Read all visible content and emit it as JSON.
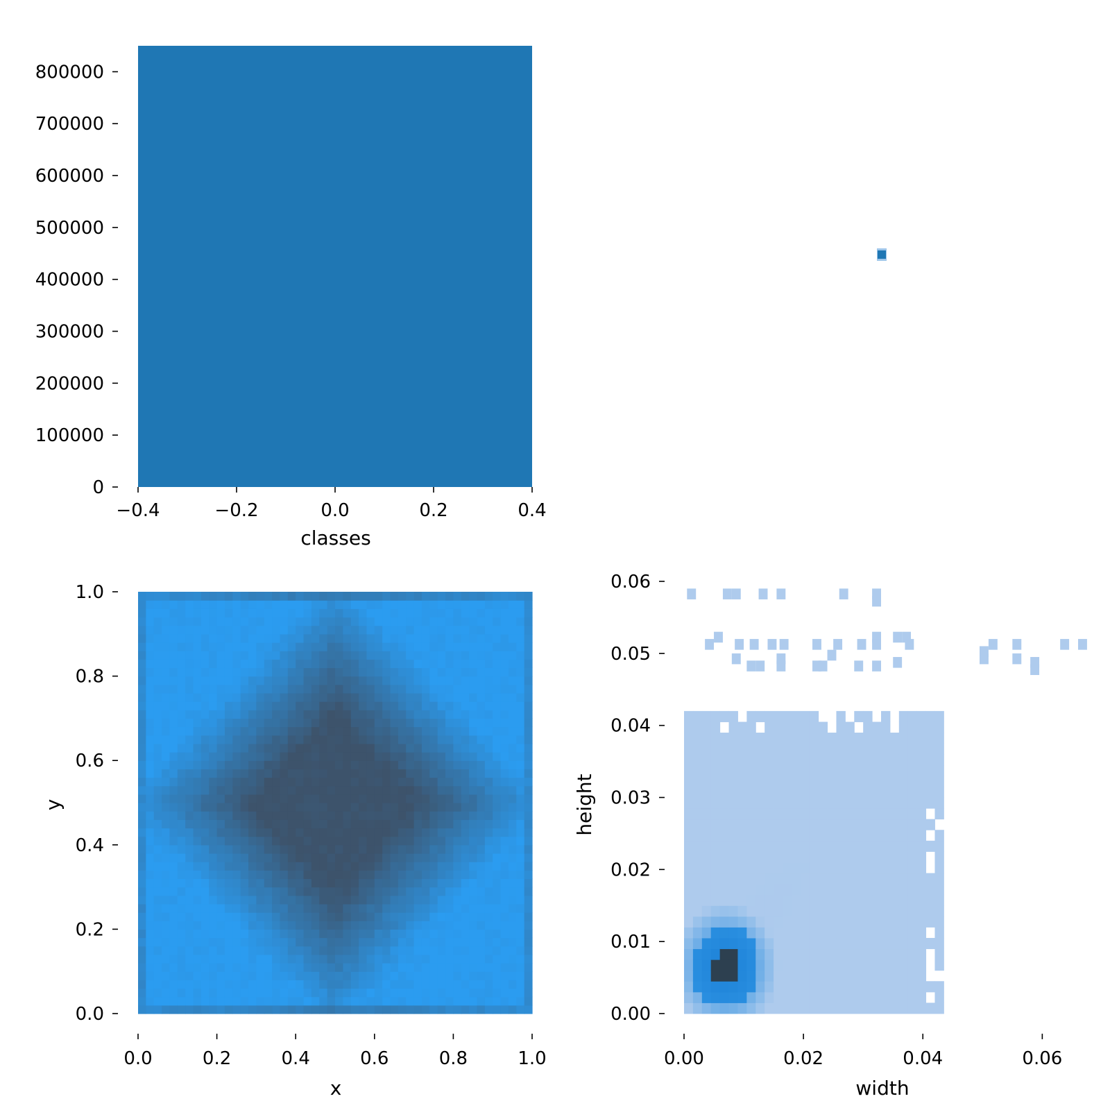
{
  "chart_data": [
    {
      "id": "classes-histogram",
      "type": "bar",
      "title": "",
      "xlabel": "classes",
      "ylabel": "",
      "xlim": [
        -0.4,
        0.4
      ],
      "ylim": [
        0,
        850000
      ],
      "grid": false,
      "x_ticks": [
        -0.4,
        -0.2,
        0.0,
        0.2,
        0.4
      ],
      "x_tick_labels": [
        "−0.4",
        "−0.2",
        "0.0",
        "0.2",
        "0.4"
      ],
      "y_ticks": [
        0,
        100000,
        200000,
        300000,
        400000,
        500000,
        600000,
        700000,
        800000
      ],
      "y_tick_labels": [
        "0",
        "100000",
        "200000",
        "300000",
        "400000",
        "500000",
        "600000",
        "700000",
        "800000"
      ],
      "bars": [
        {
          "x0": -0.4,
          "x1": 0.4,
          "value": 850000
        }
      ],
      "color": "#1f77b4"
    },
    {
      "id": "classes-vs-width-corner",
      "type": "heatmap",
      "title": "",
      "xlabel": "",
      "ylabel": "",
      "note_visible": "single dark-blue cell only, no axes shown",
      "points": [
        {
          "x": 0.0,
          "y": 0.0,
          "intensity": 1.0
        }
      ],
      "color": "#1f77b4"
    },
    {
      "id": "xy-heatmap",
      "type": "heatmap",
      "title": "",
      "xlabel": "x",
      "ylabel": "y",
      "xlim": [
        0.0,
        1.0
      ],
      "ylim": [
        0.0,
        1.0
      ],
      "grid": false,
      "bins": 50,
      "x_ticks": [
        0.0,
        0.2,
        0.4,
        0.6,
        0.8,
        1.0
      ],
      "x_tick_labels": [
        "0.0",
        "0.2",
        "0.4",
        "0.6",
        "0.8",
        "1.0"
      ],
      "y_ticks": [
        0.0,
        0.2,
        0.4,
        0.6,
        0.8,
        1.0
      ],
      "y_tick_labels": [
        "0.0",
        "0.2",
        "0.4",
        "0.6",
        "0.8",
        "1.0"
      ],
      "center": [
        0.5,
        0.5
      ],
      "color_low": "#2b9cf0",
      "color_high": "#3d536b",
      "description_of_density": "highest density in a diamond around (0.5, 0.5), darker bands along the x = 0.5 / y = 0.5 midlines and at the top and bottom edges, lightest near corners"
    },
    {
      "id": "width-height-heatmap",
      "type": "heatmap",
      "title": "",
      "xlabel": "width",
      "ylabel": "height",
      "xlim": [
        0.0,
        0.066
      ],
      "ylim": [
        0.0,
        0.06
      ],
      "grid": false,
      "bin_size": 0.0015,
      "x_ticks": [
        0.0,
        0.02,
        0.04,
        0.06
      ],
      "x_tick_labels": [
        "0.00",
        "0.02",
        "0.04",
        "0.06"
      ],
      "y_ticks": [
        0.0,
        0.01,
        0.02,
        0.03,
        0.04,
        0.05,
        0.06
      ],
      "y_tick_labels": [
        "0.00",
        "0.01",
        "0.02",
        "0.03",
        "0.04",
        "0.05",
        "0.06"
      ],
      "dense_region": {
        "width_max": 0.044,
        "height_max": 0.042
      },
      "peak": {
        "width": 0.007,
        "height": 0.0065
      },
      "color_base": "#aecbed",
      "color_mid": "#2a8fe0",
      "color_peak": "#2d4050",
      "sparse_cells": [
        [
          0.0005,
          0.0575
        ],
        [
          0.0065,
          0.0575
        ],
        [
          0.008,
          0.0575
        ],
        [
          0.0125,
          0.0575
        ],
        [
          0.0155,
          0.0575
        ],
        [
          0.026,
          0.0575
        ],
        [
          0.0315,
          0.0575
        ],
        [
          0.0315,
          0.0565
        ],
        [
          0.005,
          0.0515
        ],
        [
          0.0035,
          0.0505
        ],
        [
          0.0085,
          0.0505
        ],
        [
          0.011,
          0.0505
        ],
        [
          0.014,
          0.0505
        ],
        [
          0.016,
          0.0505
        ],
        [
          0.0215,
          0.0505
        ],
        [
          0.025,
          0.0505
        ],
        [
          0.029,
          0.0505
        ],
        [
          0.0315,
          0.0515
        ],
        [
          0.0315,
          0.0505
        ],
        [
          0.035,
          0.0515
        ],
        [
          0.0365,
          0.0515
        ],
        [
          0.037,
          0.0505
        ],
        [
          0.051,
          0.0505
        ],
        [
          0.055,
          0.0505
        ],
        [
          0.063,
          0.0505
        ],
        [
          0.066,
          0.0505
        ],
        [
          0.0495,
          0.0495
        ],
        [
          0.008,
          0.0485
        ],
        [
          0.0105,
          0.0475
        ],
        [
          0.012,
          0.0475
        ],
        [
          0.0155,
          0.0485
        ],
        [
          0.0155,
          0.0475
        ],
        [
          0.0215,
          0.0475
        ],
        [
          0.024,
          0.049
        ],
        [
          0.0225,
          0.0475
        ],
        [
          0.0285,
          0.0475
        ],
        [
          0.0315,
          0.0475
        ],
        [
          0.035,
          0.048
        ],
        [
          0.0495,
          0.0485
        ],
        [
          0.055,
          0.0485
        ],
        [
          0.058,
          0.048
        ],
        [
          0.058,
          0.047
        ]
      ]
    }
  ]
}
